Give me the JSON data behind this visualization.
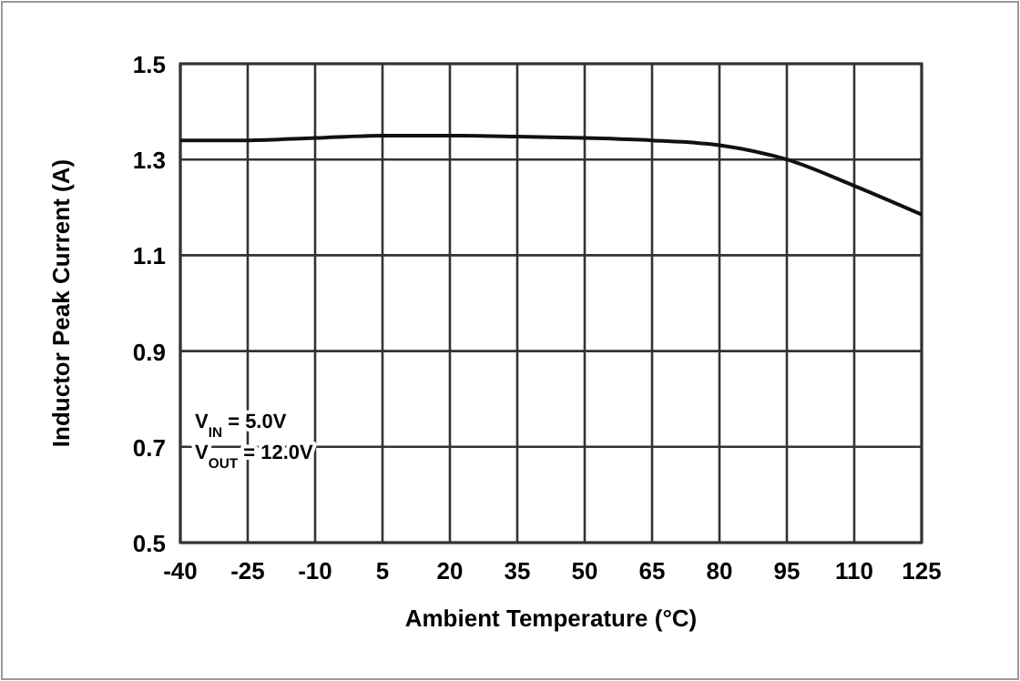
{
  "chart_data": {
    "type": "line",
    "xlabel": "Ambient Temperature (°C)",
    "ylabel": "Inductor Peak Current  (A)",
    "x": [
      -40,
      -25,
      -10,
      5,
      20,
      35,
      50,
      65,
      80,
      95,
      110,
      125
    ],
    "series": [
      {
        "color": "#111111",
        "values": [
          1.34,
          1.34,
          1.345,
          1.35,
          1.35,
          1.348,
          1.345,
          1.34,
          1.33,
          1.3,
          1.245,
          1.185
        ]
      }
    ],
    "xlim": [
      -40,
      125
    ],
    "xticks": [
      -40,
      -25,
      -10,
      5,
      20,
      35,
      50,
      65,
      80,
      95,
      110,
      125
    ],
    "ylim": [
      0.5,
      1.5
    ],
    "yticks": [
      {
        "value": 0.5,
        "label": "0.5"
      },
      {
        "value": 0.7,
        "label": "0.7"
      },
      {
        "value": 0.9,
        "label": "0.9"
      },
      {
        "value": 1.1,
        "label": "1.1"
      },
      {
        "value": 1.3,
        "label": "1.3"
      },
      {
        "value": 1.5,
        "label": "1.5"
      }
    ],
    "grid": true,
    "marker": "none",
    "line_style": "solid",
    "annotations": [
      "V$_{IN}$ = 5.0V",
      "V$_{OUT}$ = 12.0V"
    ]
  }
}
